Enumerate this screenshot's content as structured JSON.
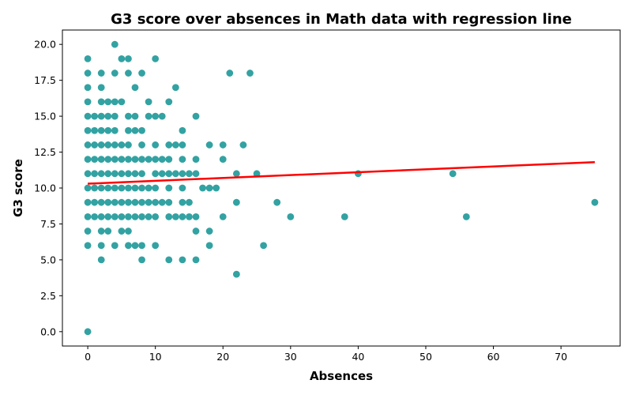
{
  "chart_data": {
    "type": "scatter",
    "title": "G3 score over absences in Math data with regression line",
    "xlabel": "Absences",
    "ylabel": "G3 score",
    "xlim": [
      -3.75,
      78.75
    ],
    "ylim": [
      -1.0,
      21.0
    ],
    "xticks": [
      0,
      10,
      20,
      30,
      40,
      50,
      60,
      70
    ],
    "xtick_labels": [
      "0",
      "10",
      "20",
      "30",
      "40",
      "50",
      "60",
      "70"
    ],
    "yticks": [
      0,
      2.5,
      5,
      7.5,
      10,
      12.5,
      15,
      17.5,
      20
    ],
    "ytick_labels": [
      "0.0",
      "2.5",
      "5.0",
      "7.5",
      "10.0",
      "12.5",
      "15.0",
      "17.5",
      "20.0"
    ],
    "grid": false,
    "point_color": "#008B8B",
    "line_color": "#FF0000",
    "regression": {
      "x": [
        0,
        75
      ],
      "y": [
        10.3,
        11.8
      ]
    },
    "points": [
      [
        0,
        0
      ],
      [
        0,
        6
      ],
      [
        0,
        7
      ],
      [
        0,
        8
      ],
      [
        0,
        9
      ],
      [
        0,
        10
      ],
      [
        0,
        11
      ],
      [
        0,
        12
      ],
      [
        0,
        13
      ],
      [
        0,
        14
      ],
      [
        0,
        15
      ],
      [
        0,
        16
      ],
      [
        0,
        17
      ],
      [
        0,
        18
      ],
      [
        0,
        19
      ],
      [
        1,
        8
      ],
      [
        1,
        9
      ],
      [
        1,
        10
      ],
      [
        1,
        11
      ],
      [
        1,
        12
      ],
      [
        1,
        13
      ],
      [
        1,
        14
      ],
      [
        1,
        15
      ],
      [
        2,
        5
      ],
      [
        2,
        6
      ],
      [
        2,
        7
      ],
      [
        2,
        8
      ],
      [
        2,
        9
      ],
      [
        2,
        10
      ],
      [
        2,
        11
      ],
      [
        2,
        12
      ],
      [
        2,
        13
      ],
      [
        2,
        14
      ],
      [
        2,
        15
      ],
      [
        2,
        16
      ],
      [
        2,
        17
      ],
      [
        2,
        18
      ],
      [
        3,
        7
      ],
      [
        3,
        8
      ],
      [
        3,
        9
      ],
      [
        3,
        10
      ],
      [
        3,
        11
      ],
      [
        3,
        12
      ],
      [
        3,
        13
      ],
      [
        3,
        14
      ],
      [
        3,
        15
      ],
      [
        3,
        16
      ],
      [
        4,
        6
      ],
      [
        4,
        8
      ],
      [
        4,
        9
      ],
      [
        4,
        10
      ],
      [
        4,
        11
      ],
      [
        4,
        12
      ],
      [
        4,
        13
      ],
      [
        4,
        14
      ],
      [
        4,
        15
      ],
      [
        4,
        16
      ],
      [
        4,
        18
      ],
      [
        4,
        20
      ],
      [
        5,
        7
      ],
      [
        5,
        8
      ],
      [
        5,
        9
      ],
      [
        5,
        10
      ],
      [
        5,
        11
      ],
      [
        5,
        12
      ],
      [
        5,
        13
      ],
      [
        5,
        16
      ],
      [
        5,
        19
      ],
      [
        6,
        6
      ],
      [
        6,
        7
      ],
      [
        6,
        8
      ],
      [
        6,
        9
      ],
      [
        6,
        10
      ],
      [
        6,
        11
      ],
      [
        6,
        12
      ],
      [
        6,
        13
      ],
      [
        6,
        14
      ],
      [
        6,
        15
      ],
      [
        6,
        18
      ],
      [
        6,
        19
      ],
      [
        7,
        6
      ],
      [
        7,
        8
      ],
      [
        7,
        9
      ],
      [
        7,
        10
      ],
      [
        7,
        11
      ],
      [
        7,
        12
      ],
      [
        7,
        14
      ],
      [
        7,
        15
      ],
      [
        7,
        17
      ],
      [
        8,
        5
      ],
      [
        8,
        6
      ],
      [
        8,
        8
      ],
      [
        8,
        9
      ],
      [
        8,
        10
      ],
      [
        8,
        11
      ],
      [
        8,
        12
      ],
      [
        8,
        13
      ],
      [
        8,
        14
      ],
      [
        8,
        18
      ],
      [
        9,
        8
      ],
      [
        9,
        9
      ],
      [
        9,
        10
      ],
      [
        9,
        12
      ],
      [
        9,
        15
      ],
      [
        9,
        16
      ],
      [
        10,
        6
      ],
      [
        10,
        8
      ],
      [
        10,
        9
      ],
      [
        10,
        10
      ],
      [
        10,
        11
      ],
      [
        10,
        12
      ],
      [
        10,
        13
      ],
      [
        10,
        15
      ],
      [
        10,
        19
      ],
      [
        11,
        9
      ],
      [
        11,
        11
      ],
      [
        11,
        12
      ],
      [
        11,
        15
      ],
      [
        12,
        5
      ],
      [
        12,
        8
      ],
      [
        12,
        9
      ],
      [
        12,
        10
      ],
      [
        12,
        11
      ],
      [
        12,
        12
      ],
      [
        12,
        13
      ],
      [
        12,
        16
      ],
      [
        13,
        8
      ],
      [
        13,
        11
      ],
      [
        13,
        13
      ],
      [
        13,
        17
      ],
      [
        14,
        5
      ],
      [
        14,
        8
      ],
      [
        14,
        9
      ],
      [
        14,
        10
      ],
      [
        14,
        11
      ],
      [
        14,
        12
      ],
      [
        14,
        13
      ],
      [
        14,
        14
      ],
      [
        15,
        8
      ],
      [
        15,
        9
      ],
      [
        15,
        11
      ],
      [
        16,
        5
      ],
      [
        16,
        7
      ],
      [
        16,
        8
      ],
      [
        16,
        11
      ],
      [
        16,
        12
      ],
      [
        16,
        15
      ],
      [
        17,
        10
      ],
      [
        18,
        6
      ],
      [
        18,
        7
      ],
      [
        18,
        10
      ],
      [
        18,
        13
      ],
      [
        19,
        10
      ],
      [
        20,
        8
      ],
      [
        20,
        12
      ],
      [
        20,
        13
      ],
      [
        21,
        18
      ],
      [
        22,
        4
      ],
      [
        22,
        9
      ],
      [
        22,
        11
      ],
      [
        23,
        13
      ],
      [
        24,
        18
      ],
      [
        25,
        11
      ],
      [
        26,
        6
      ],
      [
        28,
        9
      ],
      [
        30,
        8
      ],
      [
        38,
        8
      ],
      [
        40,
        11
      ],
      [
        54,
        11
      ],
      [
        56,
        8
      ],
      [
        75,
        9
      ]
    ]
  }
}
